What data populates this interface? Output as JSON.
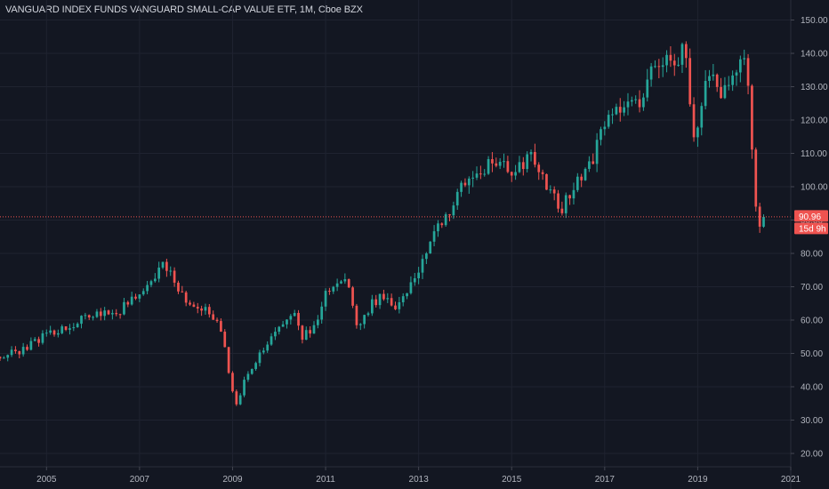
{
  "chart_data": {
    "type": "candlestick",
    "title": "VANGUARD INDEX FUNDS VANGUARD SMALL-CAP VALUE ETF, 1M, Cboe BZX",
    "interval": "1M",
    "x_ticks": [
      "2005",
      "2007",
      "2009",
      "2011",
      "2013",
      "2015",
      "2017",
      "2019",
      "2021"
    ],
    "y_ticks": [
      "20.00",
      "30.00",
      "40.00",
      "50.00",
      "60.00",
      "70.00",
      "80.00",
      "90.00",
      "100.00",
      "110.00",
      "120.00",
      "130.00",
      "140.00",
      "150.00"
    ],
    "xlim": [
      2004.0,
      2021.0
    ],
    "ylim": [
      16,
      156
    ],
    "grid": true,
    "up_color": "#26a69a",
    "down_color": "#ef5350",
    "background": "#131722",
    "last_price": {
      "label": "90.96",
      "value": 90.96
    },
    "countdown": {
      "label": "15d 9h"
    },
    "close_series": {
      "x": [
        2004.0,
        2004.5,
        2005.0,
        2005.5,
        2006.0,
        2006.5,
        2007.0,
        2007.3,
        2007.5,
        2007.8,
        2008.0,
        2008.3,
        2008.5,
        2008.8,
        2008.95,
        2009.1,
        2009.2,
        2009.5,
        2009.8,
        2010.0,
        2010.3,
        2010.5,
        2010.8,
        2011.0,
        2011.3,
        2011.5,
        2011.65,
        2011.8,
        2012.0,
        2012.3,
        2012.5,
        2012.8,
        2013.0,
        2013.3,
        2013.5,
        2013.8,
        2014.0,
        2014.3,
        2014.5,
        2014.8,
        2015.0,
        2015.3,
        2015.5,
        2015.8,
        2016.0,
        2016.1,
        2016.3,
        2016.5,
        2016.8,
        2017.0,
        2017.3,
        2017.5,
        2017.8,
        2018.0,
        2018.3,
        2018.5,
        2018.7,
        2018.8,
        2018.95,
        2019.1,
        2019.3,
        2019.5,
        2019.7,
        2019.9,
        2020.0,
        2020.1,
        2020.2,
        2020.3,
        2020.45
      ],
      "y": [
        49,
        51,
        56,
        58,
        62,
        62,
        68,
        72,
        76,
        71,
        65,
        62,
        63,
        55,
        42,
        33,
        40,
        48,
        54,
        57,
        63,
        55,
        58,
        68,
        73,
        70,
        58,
        60,
        65,
        68,
        64,
        70,
        75,
        85,
        90,
        96,
        102,
        104,
        106,
        106,
        105,
        108,
        108,
        98,
        95,
        93,
        100,
        104,
        110,
        120,
        122,
        124,
        126,
        136,
        139,
        138,
        142,
        130,
        113,
        128,
        132,
        128,
        130,
        136,
        137,
        129,
        104,
        87,
        91
      ]
    }
  }
}
